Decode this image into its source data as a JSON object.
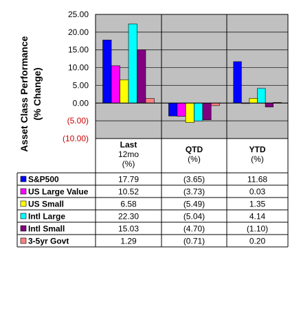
{
  "chart_data": {
    "type": "bar",
    "ylabel": "Asset Class Performance (% Change)",
    "ylabel_lines": [
      "Asset Class Performance",
      "(% Change)"
    ],
    "ylim": [
      -10,
      25
    ],
    "yticks": [
      {
        "value": 25,
        "label": "25.00"
      },
      {
        "value": 20,
        "label": "20.00"
      },
      {
        "value": 15,
        "label": "15.00"
      },
      {
        "value": 10,
        "label": "10.00"
      },
      {
        "value": 5,
        "label": "5.00"
      },
      {
        "value": 0,
        "label": "0.00"
      },
      {
        "value": -5,
        "label": "(5.00)"
      },
      {
        "value": -10,
        "label": "(10.00)"
      }
    ],
    "negative_tick_color": "#cc0000",
    "plot_background": "#c0c0c0",
    "grid": true,
    "legend_placement": "data-table",
    "categories": [
      {
        "lines": [
          "Last",
          "12mo",
          "(%)"
        ]
      },
      {
        "lines": [
          "QTD",
          "(%)"
        ]
      },
      {
        "lines": [
          "YTD",
          "(%)"
        ]
      }
    ],
    "series": [
      {
        "name": "S&P500",
        "color": "#0000ff",
        "values": [
          17.79,
          -3.65,
          11.68
        ],
        "labels": [
          "17.79",
          "(3.65)",
          "11.68"
        ]
      },
      {
        "name": "US Large Value",
        "color": "#ff00ff",
        "values": [
          10.52,
          -3.73,
          0.03
        ],
        "labels": [
          "10.52",
          "(3.73)",
          "0.03"
        ]
      },
      {
        "name": "US Small",
        "color": "#ffff00",
        "values": [
          6.58,
          -5.49,
          1.35
        ],
        "labels": [
          "6.58",
          "(5.49)",
          "1.35"
        ]
      },
      {
        "name": "Intl Large",
        "color": "#00ffff",
        "values": [
          22.3,
          -5.04,
          4.14
        ],
        "labels": [
          "22.30",
          "(5.04)",
          "4.14"
        ]
      },
      {
        "name": "Intl Small",
        "color": "#800080",
        "values": [
          15.03,
          -4.7,
          -1.1
        ],
        "labels": [
          "15.03",
          "(4.70)",
          "(1.10)"
        ]
      },
      {
        "name": "3-5yr Govt",
        "color": "#ff8080",
        "values": [
          1.29,
          -0.71,
          0.2
        ],
        "labels": [
          "1.29",
          "(0.71)",
          "0.20"
        ]
      }
    ]
  }
}
